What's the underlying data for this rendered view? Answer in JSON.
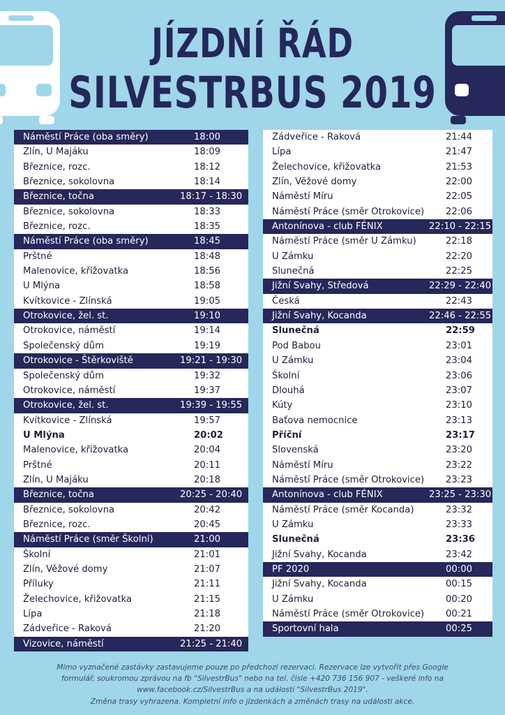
{
  "title_line1": "JÍZDNÍ ŘÁD",
  "title_line2": "SILVESTRBUS 2019",
  "left_rows": [
    {
      "stop": "Náměstí Práce     (oba směry)",
      "time": "18:00",
      "hl": true
    },
    {
      "stop": "Zlín, U Majáku",
      "time": "18:09"
    },
    {
      "stop": "Březnice, rozc.",
      "time": "18:12"
    },
    {
      "stop": "Březnice, sokolovna",
      "time": "18:14"
    },
    {
      "stop": "Březnice, točna",
      "time": "18:17 - 18:30",
      "hl": true,
      "range": true
    },
    {
      "stop": "Březnice, sokolovna",
      "time": "18:33"
    },
    {
      "stop": "Březnice, rozc.",
      "time": "18:35"
    },
    {
      "stop": "Náměstí Práce     (oba směry)",
      "time": "18:45",
      "hl": true
    },
    {
      "stop": "Prštné",
      "time": "18:48"
    },
    {
      "stop": "Malenovice, křižovatka",
      "time": "18:56"
    },
    {
      "stop": "U Mlýna",
      "time": "18:58"
    },
    {
      "stop": "Kvítkovice - Zlínská",
      "time": "19:05"
    },
    {
      "stop": "Otrokovice, žel. st.",
      "time": "19:10",
      "hl": true
    },
    {
      "stop": "Otrokovice, náměstí",
      "time": "19:14"
    },
    {
      "stop": "Společenský dům",
      "time": "19:19"
    },
    {
      "stop": "Otrokovice - Štěrkoviště",
      "time": "19:21 - 19:30",
      "hl": true,
      "range": true
    },
    {
      "stop": "Společenský dům",
      "time": "19:32"
    },
    {
      "stop": "Otrokovice, náměstí",
      "time": "19:37"
    },
    {
      "stop": "Otrokovice, žel. st.",
      "time": "19:39 - 19:55",
      "hl": true,
      "range": true
    },
    {
      "stop": "Kvítkovice - Zlínská",
      "time": "19:57"
    },
    {
      "stop": "U Mlýna",
      "time": "20:02",
      "b": true
    },
    {
      "stop": "Malenovice, křižovatka",
      "time": "20:04"
    },
    {
      "stop": "Prštné",
      "time": "20:11"
    },
    {
      "stop": "Zlín, U Majáku",
      "time": "20:18"
    },
    {
      "stop": "Březnice, točna",
      "time": "20:25 - 20:40",
      "hl": true,
      "range": true
    },
    {
      "stop": "Březnice, sokolovna",
      "time": "20:42"
    },
    {
      "stop": "Březnice, rozc.",
      "time": "20:45"
    },
    {
      "stop": "Náměstí Práce     (směr Školní)",
      "time": "21:00",
      "hl": true
    },
    {
      "stop": "Školní",
      "time": "21:01"
    },
    {
      "stop": "Zlín, Věžové domy",
      "time": "21:07"
    },
    {
      "stop": "Příluky",
      "time": "21:11"
    },
    {
      "stop": "Želechovice, křižovatka",
      "time": "21:15"
    },
    {
      "stop": "Lípa",
      "time": "21:18"
    },
    {
      "stop": "Zádveřice - Raková",
      "time": "21:20"
    },
    {
      "stop": "Vizovice, náměstí",
      "time": "21:25 - 21:40",
      "hl": true,
      "range": true
    }
  ],
  "right_rows": [
    {
      "stop": "Zádveřice - Raková",
      "time": "21:44"
    },
    {
      "stop": "Lípa",
      "time": "21:47"
    },
    {
      "stop": "Želechovice, křižovatka",
      "time": "21:53"
    },
    {
      "stop": "Zlín, Věžové domy",
      "time": "22:00"
    },
    {
      "stop": "Náměstí Míru",
      "time": "22:05"
    },
    {
      "stop": "Náměstí Práce     (směr Otrokovice)",
      "time": "22:06"
    },
    {
      "stop": "Antonínova - club FÉNIX",
      "time": "22:10 - 22:15",
      "hl": true,
      "range": true
    },
    {
      "stop": "Náměstí Práce     (směr U Zámku)",
      "time": "22:18"
    },
    {
      "stop": "U Zámku",
      "time": "22:20"
    },
    {
      "stop": "Slunečná",
      "time": "22:25"
    },
    {
      "stop": "Jižní Svahy, Středová",
      "time": "22:29 - 22:40",
      "hl": true,
      "range": true
    },
    {
      "stop": "Česká",
      "time": "22:43"
    },
    {
      "stop": "Jižní Svahy, Kocanda",
      "time": "22:46 - 22:55",
      "hl": true,
      "range": true
    },
    {
      "stop": "Slunečná",
      "time": "22:59",
      "b": true
    },
    {
      "stop": "Pod Babou",
      "time": "23:01"
    },
    {
      "stop": "U Zámku",
      "time": "23:04"
    },
    {
      "stop": "Školní",
      "time": "23:06"
    },
    {
      "stop": "Dlouhá",
      "time": "23:07"
    },
    {
      "stop": "Kúty",
      "time": "23:10"
    },
    {
      "stop": "Baťova nemocnice",
      "time": "23:13"
    },
    {
      "stop": "Příční",
      "time": "23:17",
      "b": true
    },
    {
      "stop": "Slovenská",
      "time": "23:20"
    },
    {
      "stop": "Náměstí Míru",
      "time": "23:22"
    },
    {
      "stop": "Náměstí Práce     (směr Otrokovice)",
      "time": "23:23"
    },
    {
      "stop": "Antonínova - club FÉNIX",
      "time": "23:25 - 23:30",
      "hl": true,
      "range": true
    },
    {
      "stop": "Náměstí Práce     (směr Kocanda)",
      "time": "23:32"
    },
    {
      "stop": "U Zámku",
      "time": "23:33"
    },
    {
      "stop": "Slunečná",
      "time": "23:36",
      "b": true
    },
    {
      "stop": "Jižní Svahy, Kocanda",
      "time": "23:42"
    },
    {
      "stop": "PF 2020",
      "time": "00:00",
      "hl": true
    },
    {
      "stop": "Jižní Svahy, Kocanda",
      "time": "00:15"
    },
    {
      "stop": "U Zámku",
      "time": "00:20"
    },
    {
      "stop": "Náměstí Práce     (směr Otrokovice)",
      "time": "00:21"
    },
    {
      "stop": "Sportovní hala",
      "time": "00:25",
      "hl": true
    }
  ],
  "footer": {
    "line1": "Mimo vyznačené zastávky zastavujeme pouze po předchozí rezervaci. Rezervace lze vytvořit přes Google",
    "line2": "formulář, soukromou zprávou na fb \"SilvestrBus\" nebo na tel. čísle +420 736 156 907 - veškeré info na",
    "line3": "www.facebook.cz/SilvestrBus a na události \"SilvestrBus 2019\".",
    "line4": "Změna trasy vyhrazena. Kompletní info o jízdenkách a změnách trasy na události akce."
  },
  "colors": {
    "background": "#9fd6e9",
    "accent": "#26275a",
    "bus": "#ffffff",
    "bus_dark": "#26275a"
  },
  "icons": [
    "bus-front-icon-left",
    "bus-front-icon-right"
  ]
}
